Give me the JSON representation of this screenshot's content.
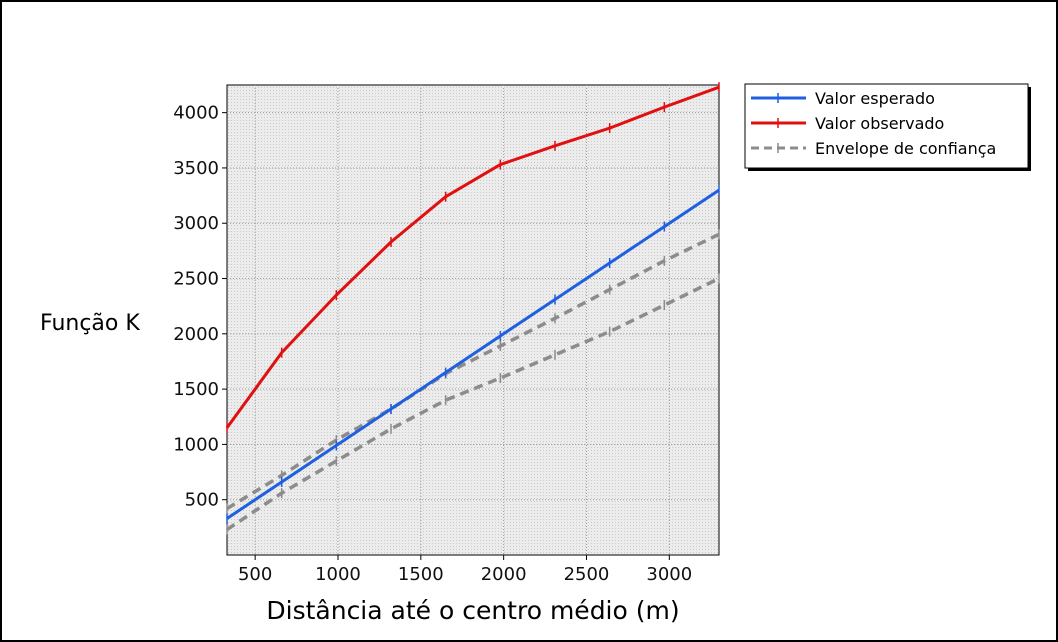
{
  "chart_data": {
    "type": "line",
    "xlabel": "Distância até o centro médio (m)",
    "ylabel": "Função K",
    "xlim": [
      330,
      3300
    ],
    "ylim": [
      0,
      4250
    ],
    "xticks": [
      500,
      1000,
      1500,
      2000,
      2500,
      3000
    ],
    "yticks": [
      500,
      1000,
      1500,
      2000,
      2500,
      3000,
      3500,
      4000
    ],
    "grid": true,
    "legend_position": "top-right (outside plot)",
    "x": [
      330,
      660,
      990,
      1320,
      1650,
      1980,
      2310,
      2640,
      2970,
      3300
    ],
    "series": [
      {
        "name": "Valor esperado",
        "color": "#1f5fe0",
        "style": "solid",
        "values": [
          330,
          660,
          990,
          1320,
          1650,
          1980,
          2310,
          2640,
          2970,
          3300
        ]
      },
      {
        "name": "Valor observado",
        "color": "#e01010",
        "style": "solid",
        "values": [
          1150,
          1830,
          2350,
          2830,
          3240,
          3530,
          3700,
          3860,
          4050,
          4230
        ]
      },
      {
        "name": "Envelope de confiança",
        "color": "#8c8c8c",
        "style": "dashed",
        "values": [
          420,
          720,
          1040,
          1320,
          1640,
          1890,
          2140,
          2400,
          2660,
          2900
        ]
      },
      {
        "name": "",
        "color": "#8c8c8c",
        "style": "dashed",
        "values": [
          230,
          560,
          850,
          1140,
          1400,
          1600,
          1810,
          2020,
          2260,
          2500
        ]
      }
    ],
    "legend": [
      "Valor esperado",
      "Valor observado",
      "Envelope de confiança"
    ]
  }
}
